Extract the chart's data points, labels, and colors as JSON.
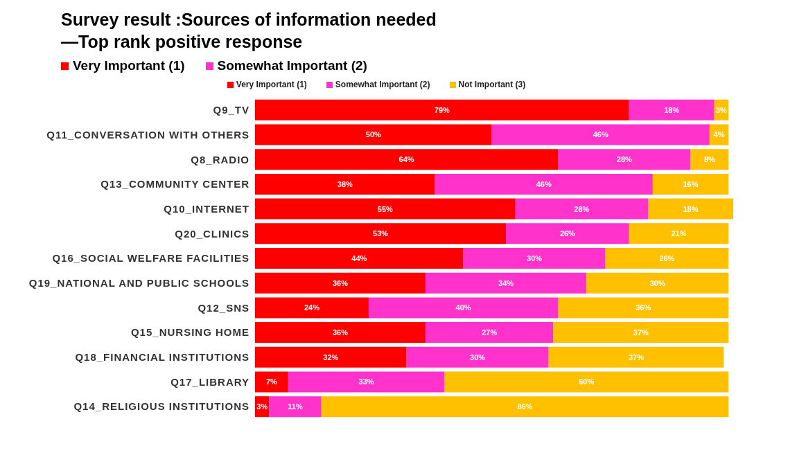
{
  "chart_data": {
    "type": "bar",
    "orientation": "horizontal",
    "stacked": true,
    "title": "Survey result :Sources of information needed\n—Top rank positive response",
    "annotations": [
      "Very Important  (1)",
      "Somewhat Important  (2)"
    ],
    "categories": [
      "Q9_TV",
      "Q11_CONVERSATION WITH OTHERS",
      "Q8_RADIO",
      "Q13_COMMUNITY CENTER",
      "Q10_INTERNET",
      "Q20_CLINICS",
      "Q16_SOCIAL WELFARE FACILITIES",
      "Q19_NATIONAL AND PUBLIC SCHOOLS",
      "Q12_SNS",
      "Q15_NURSING HOME",
      "Q18_FINANCIAL INSTITUTIONS",
      "Q17_LIBRARY",
      "Q14_RELIGIOUS INSTITUTIONS"
    ],
    "series": [
      {
        "name": "Very Important  (1)",
        "color": "#ff0000",
        "values": [
          79,
          50,
          64,
          38,
          55,
          53,
          44,
          36,
          24,
          36,
          32,
          7,
          3
        ],
        "value_labels": [
          "79%",
          "50%",
          "64%",
          "38%",
          "55%",
          "53%",
          "44%",
          "36%",
          "24%",
          "36%",
          "32%",
          "7%",
          "3%"
        ]
      },
      {
        "name": "Somewhat Important  (2)",
        "color": "#ff33cc",
        "values": [
          18,
          46,
          28,
          46,
          28,
          26,
          30,
          34,
          40,
          27,
          30,
          33,
          11
        ],
        "value_labels": [
          "18%",
          "46%",
          "28%",
          "46%",
          "28%",
          "26%",
          "30%",
          "34%",
          "40%",
          "27%",
          "30%",
          "33%",
          "11%"
        ]
      },
      {
        "name": "Not Important  (3)",
        "color": "#ffc000",
        "values": [
          3,
          4,
          8,
          16,
          18,
          21,
          26,
          30,
          36,
          37,
          37,
          60,
          86
        ],
        "value_labels": [
          "3%",
          "4%",
          "8%",
          "16%",
          "18%",
          "21%",
          "26%",
          "30%",
          "36%",
          "37%",
          "37%",
          "60%",
          "86%"
        ]
      }
    ],
    "legend": "top",
    "tick_labels": "y"
  }
}
